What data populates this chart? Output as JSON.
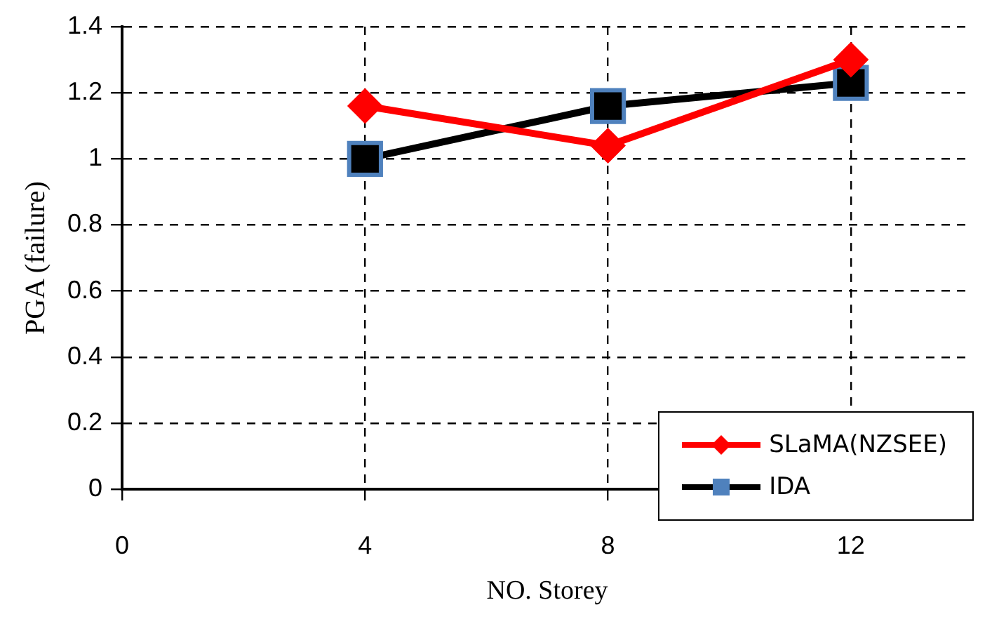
{
  "chart_data": {
    "type": "line",
    "xlabel": "NO. Storey",
    "ylabel": "PGA (failure)",
    "x": [
      4,
      8,
      12
    ],
    "series": [
      {
        "name": "SLaMA(NZSEE)",
        "color": "#ff0000",
        "values": [
          1.16,
          1.04,
          1.3
        ],
        "marker": "diamond"
      },
      {
        "name": "IDA",
        "color": "#000000",
        "values": [
          1.0,
          1.16,
          1.23
        ],
        "marker": "square"
      }
    ],
    "xlim": [
      0,
      14
    ],
    "xticks": [
      0,
      4,
      8,
      12
    ],
    "ylim": [
      0,
      1.4
    ],
    "yticks": [
      0,
      0.2,
      0.4,
      0.6,
      0.8,
      1,
      1.2,
      1.4
    ],
    "grid": true,
    "legend": "bottom right",
    "line_style": "solid"
  }
}
